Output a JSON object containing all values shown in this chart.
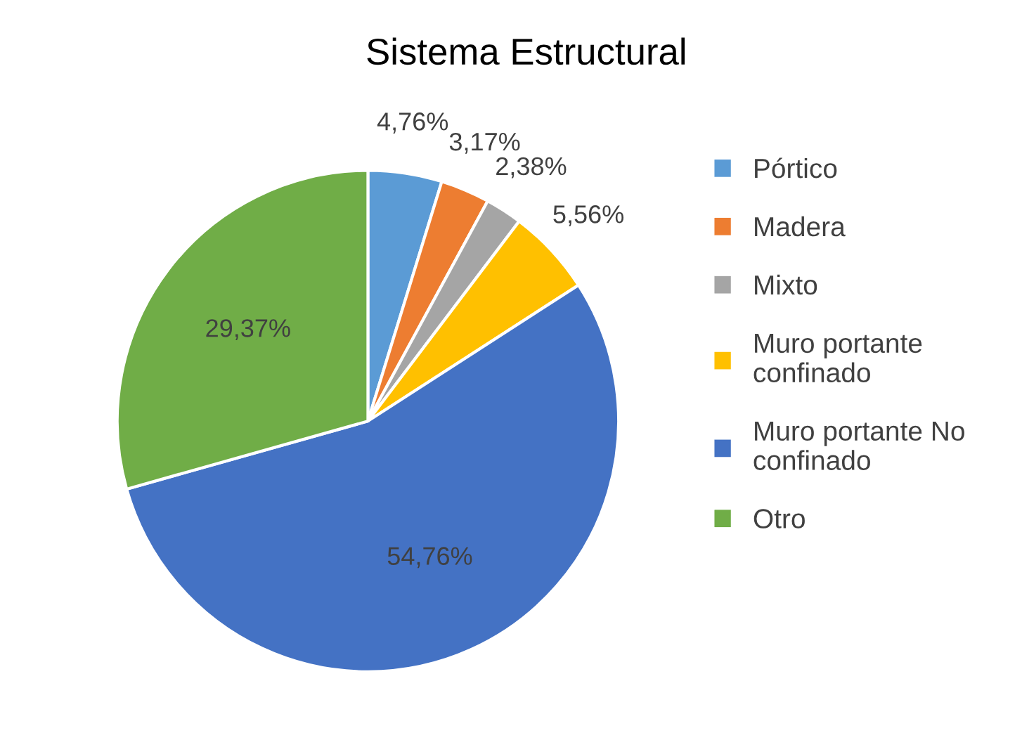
{
  "chart_data": {
    "type": "pie",
    "title": "Sistema Estructural",
    "categories": [
      "Pórtico",
      "Madera",
      "Mixto",
      "Muro portante\nconfinado",
      "Muro portante No\nconfinado",
      "Otro"
    ],
    "values": [
      4.76,
      3.17,
      2.38,
      5.56,
      54.76,
      29.37
    ],
    "value_labels": [
      "4,76%",
      "3,17%",
      "2,38%",
      "5,56%",
      "54,76%",
      "29,37%"
    ],
    "colors": [
      "#5b9bd5",
      "#ed7d31",
      "#a5a5a5",
      "#ffc000",
      "#4472c4",
      "#70ad47"
    ],
    "legend": "right"
  }
}
